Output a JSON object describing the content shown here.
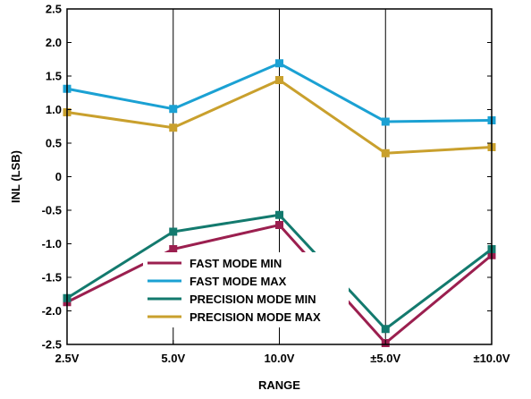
{
  "chart_data": {
    "type": "line",
    "xlabel": "RANGE",
    "ylabel": "INL (LSB)",
    "categories": [
      "2.5V",
      "5.0V",
      "10.0V",
      "±5.0V",
      "±10.0V"
    ],
    "ylim": [
      -2.5,
      2.5
    ],
    "yticks": [
      2.5,
      2.0,
      1.5,
      1.0,
      0.5,
      0,
      -0.5,
      -1.0,
      -1.5,
      -2.0,
      -2.5
    ],
    "ytick_labels": [
      "2.5",
      "2.0",
      "1.5",
      "1.0",
      "0.5",
      "0",
      "-0.5",
      "-1.0",
      "-1.5",
      "-2.0",
      "-2.5"
    ],
    "grid": "vertical",
    "legend_position": "bottom-center",
    "series": [
      {
        "name": "FAST MODE MIN",
        "color": "#9b1f4f",
        "values": [
          -1.87,
          -1.08,
          -0.72,
          -2.48,
          -1.17
        ]
      },
      {
        "name": "FAST MODE MAX",
        "color": "#1ba1d3",
        "values": [
          1.31,
          1.01,
          1.69,
          0.82,
          0.84
        ]
      },
      {
        "name": "PRECISION MODE MIN",
        "color": "#137a6e",
        "values": [
          -1.81,
          -0.82,
          -0.57,
          -2.27,
          -1.08
        ]
      },
      {
        "name": "PRECISION MODE MAX",
        "color": "#c9a02d",
        "values": [
          0.96,
          0.73,
          1.44,
          0.35,
          0.44
        ]
      }
    ]
  }
}
